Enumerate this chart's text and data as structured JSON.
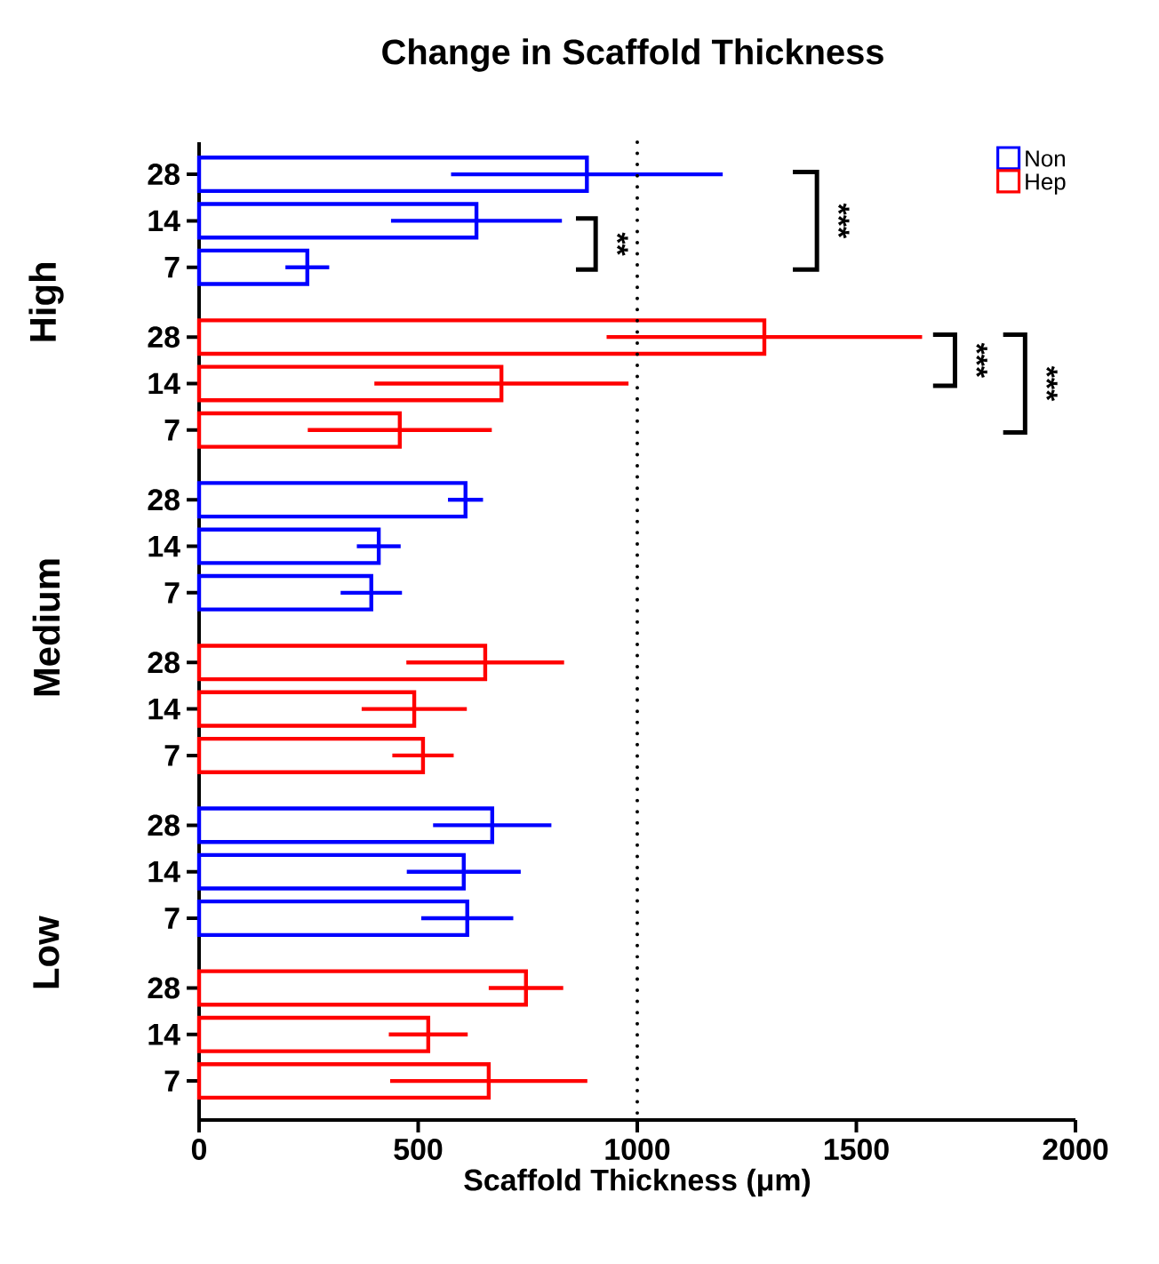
{
  "chart_data": {
    "type": "bar",
    "orientation": "horizontal",
    "title": "Change in Scaffold Thickness",
    "xlabel": "Scaffold Thickness (μm)",
    "categories": [
      "28",
      "14",
      "7",
      "28",
      "14",
      "7",
      "28",
      "14",
      "7",
      "28",
      "14",
      "7",
      "28",
      "14",
      "7",
      "28",
      "14",
      "7"
    ],
    "series": [
      {
        "name": "Non",
        "color": "#0000ff",
        "values": [
          885,
          633,
          247,
          null,
          null,
          null,
          608,
          410,
          393,
          null,
          null,
          null,
          669,
          604,
          612,
          null,
          null,
          null
        ],
        "errors": [
          310,
          195,
          50,
          null,
          null,
          null,
          40,
          50,
          70,
          null,
          null,
          null,
          135,
          130,
          105,
          null,
          null,
          null
        ]
      },
      {
        "name": "Hep",
        "color": "#ff0000",
        "values": [
          null,
          null,
          null,
          1290,
          690,
          458,
          null,
          null,
          null,
          653,
          491,
          511,
          null,
          null,
          null,
          746,
          523,
          661
        ],
        "errors": [
          null,
          null,
          null,
          360,
          290,
          210,
          null,
          null,
          null,
          180,
          120,
          70,
          null,
          null,
          null,
          85,
          90,
          225
        ]
      }
    ],
    "xlim": [
      0,
      2000
    ],
    "xticks": [
      0,
      500,
      1000,
      1500,
      2000
    ],
    "ref_lines": [
      {
        "axis": "x",
        "value": 1000,
        "color": "#000000",
        "line_style": "dotted"
      }
    ],
    "legend": "top right",
    "annotations": [
      "High",
      "Medium",
      "Low",
      "**",
      "***",
      "***",
      "***"
    ]
  }
}
